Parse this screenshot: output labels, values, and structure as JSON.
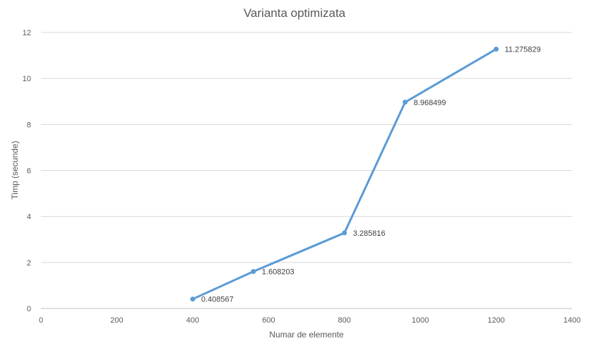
{
  "chart_data": {
    "type": "scatter",
    "title": "Varianta optimizata",
    "xlabel": "Numar de elemente",
    "ylabel": "Timp (secunde)",
    "xlim": [
      0,
      1400
    ],
    "ylim": [
      0,
      12
    ],
    "x_ticks": [
      0,
      200,
      400,
      600,
      800,
      1000,
      1200,
      1400
    ],
    "y_ticks": [
      0,
      2,
      4,
      6,
      8,
      10,
      12
    ],
    "grid": "horizontal",
    "legend": "none",
    "line_color": "#5b9bd5",
    "series": [
      {
        "points": [
          {
            "x": 400,
            "y": 0.408567,
            "label": "0.408567"
          },
          {
            "x": 560,
            "y": 1.608203,
            "label": "1.608203"
          },
          {
            "x": 800,
            "y": 3.285816,
            "label": "3.285816"
          },
          {
            "x": 960,
            "y": 8.968499,
            "label": "8.968499"
          },
          {
            "x": 1200,
            "y": 11.275829,
            "label": "11.275829"
          }
        ]
      }
    ]
  }
}
